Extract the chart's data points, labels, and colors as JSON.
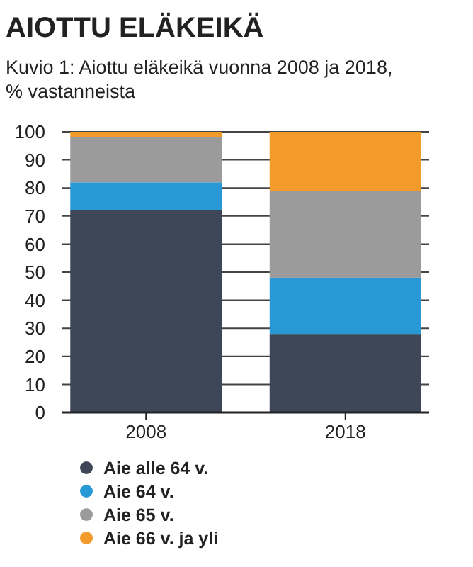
{
  "chart_data": {
    "type": "bar",
    "stacked": true,
    "title": "AIOTTU ELÄKEIKÄ",
    "subtitle": "Kuvio 1: Aiottu eläkeikä vuonna 2008 ja 2018, % vastanneista",
    "categories": [
      "2008",
      "2018"
    ],
    "series": [
      {
        "name": "Aie alle 64 v.",
        "color": "#3d4757",
        "values": [
          72,
          28
        ]
      },
      {
        "name": "Aie 64 v.",
        "color": "#2899d4",
        "values": [
          10,
          20
        ]
      },
      {
        "name": "Aie 65 v.",
        "color": "#9b9b9b",
        "values": [
          16,
          31
        ]
      },
      {
        "name": "Aie 66 v. ja yli",
        "color": "#f29b2b",
        "values": [
          2,
          21
        ]
      }
    ],
    "ylim": [
      0,
      100
    ],
    "yticks": [
      0,
      10,
      20,
      30,
      40,
      50,
      60,
      70,
      80,
      90,
      100
    ],
    "grid": "y",
    "legend": "bottom"
  }
}
